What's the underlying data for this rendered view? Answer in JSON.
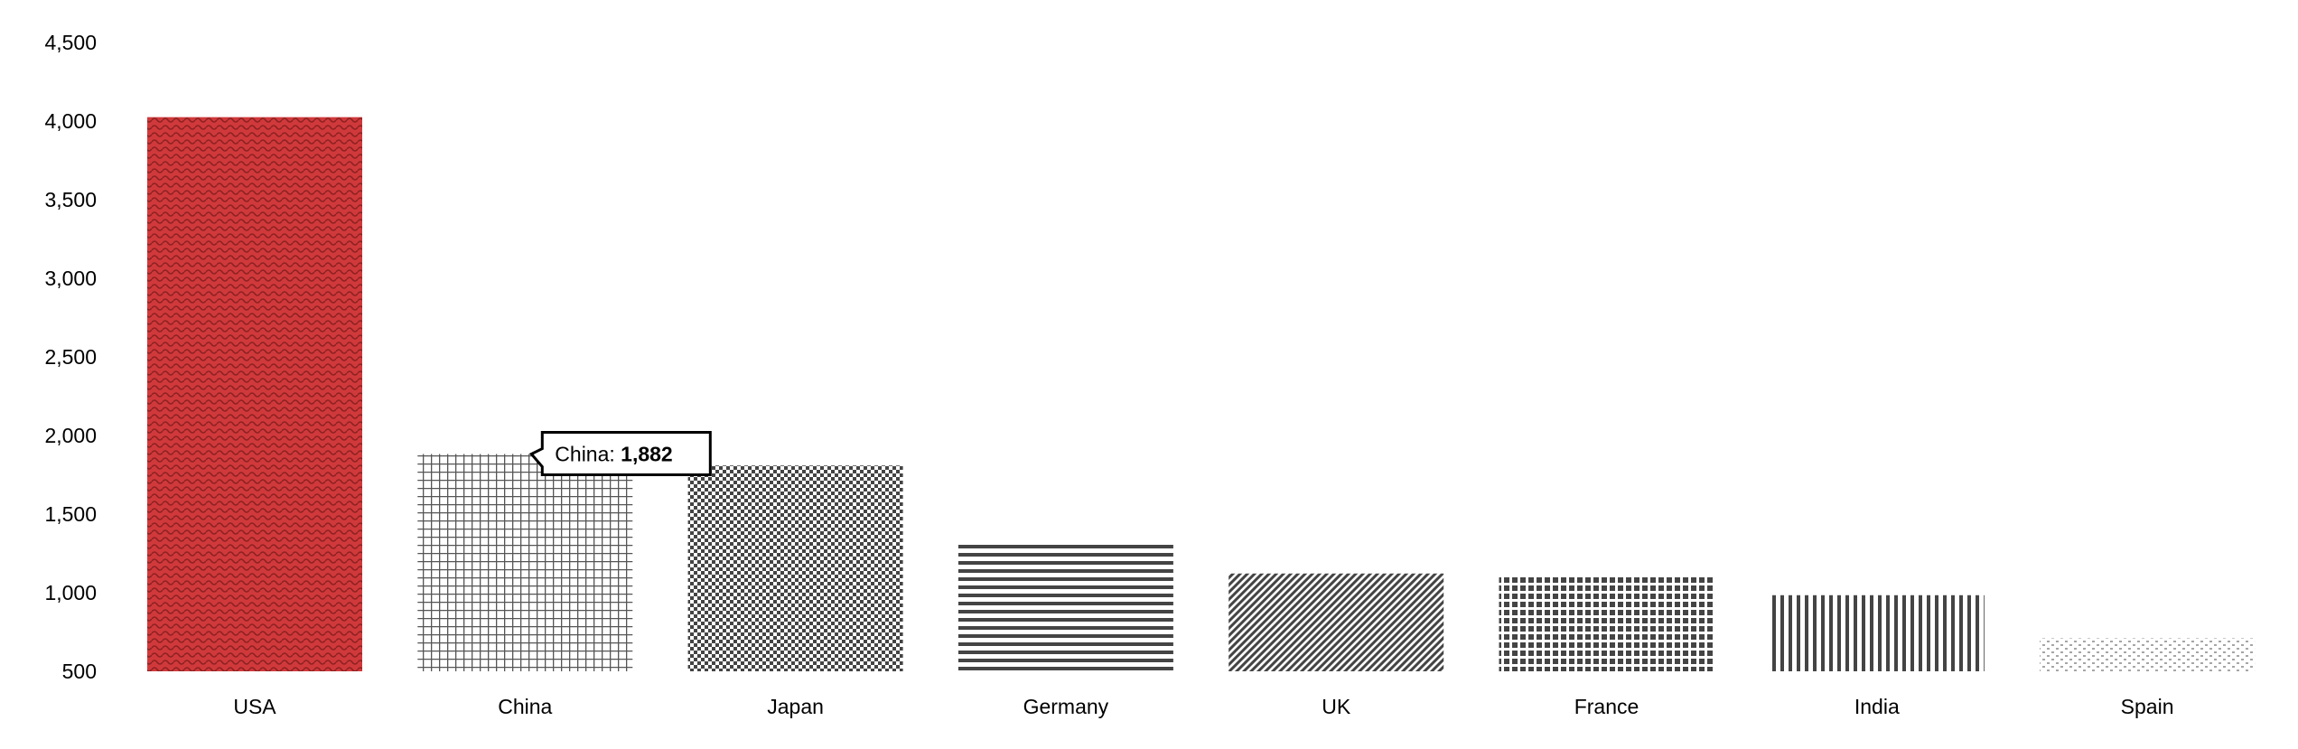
{
  "chart_data": {
    "type": "bar",
    "categories": [
      "USA",
      "China",
      "Japan",
      "Germany",
      "UK",
      "France",
      "India",
      "Spain"
    ],
    "values": [
      4025,
      1882,
      1809,
      1322,
      1122,
      1114,
      984,
      711
    ],
    "ylim": [
      500,
      4500
    ],
    "yticks": [
      500,
      1000,
      1500,
      2000,
      2500,
      3000,
      3500,
      4000,
      4500
    ],
    "ytick_labels": [
      "500",
      "1,000",
      "1,500",
      "2,000",
      "2,500",
      "3,000",
      "3,500",
      "4,000",
      "4,500"
    ],
    "grid": false,
    "legend": "none",
    "highlight_color": "#d0393b",
    "pattern_color": "#444444",
    "patterns": [
      "wave",
      "grid",
      "checker",
      "horizontal",
      "diagonal",
      "squares",
      "vertical",
      "dots"
    ],
    "tooltip": {
      "category": "China",
      "prefix": "China: ",
      "value_label": "1,882"
    }
  }
}
